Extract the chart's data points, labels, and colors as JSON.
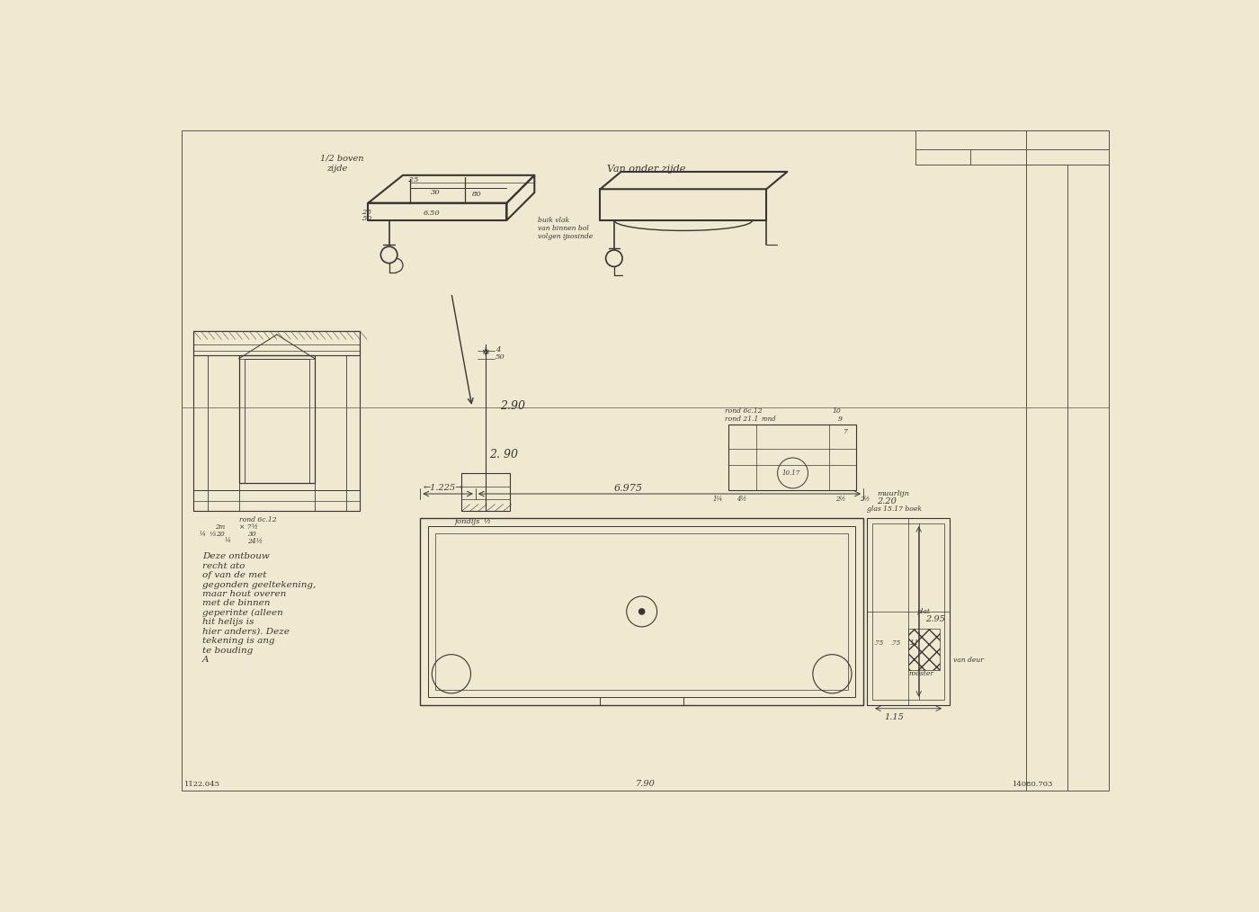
{
  "bg_color": "#f0e8d0",
  "paper_color": "#ede5cb",
  "line_color": "#3a3530",
  "line_color_thin": "#5a5248",
  "figsize": [
    14.0,
    10.14
  ],
  "dpi": 100,
  "annotations": {
    "sketch1_label1": "1/2 boven",
    "sketch1_label2": "zijde",
    "sketch2_label": "Van onder zijde",
    "dim_290a": "2.90",
    "dim_290b": "2. 90",
    "dim_4_50": "4\n50",
    "dim_125": "1.225",
    "dim_6975": "6.975",
    "dim_220": "2.20",
    "dim_295": "2.95",
    "dim_115": "1.15",
    "dim_790": "7.90",
    "muurlijn": "muurlijn",
    "fondijs": "fondijs",
    "archive_left": "1122.045",
    "archive_right": "14080.703",
    "note_text": "Deze ontbouw\nrecht ato\nof van de met\ngegonden geeltekening,\nmaar hout overen\nmet de binnen\ngeperinte (alleen\nhit helijs is\nhier anders). Deze\ntekening is ang\nte bouding\nA"
  }
}
